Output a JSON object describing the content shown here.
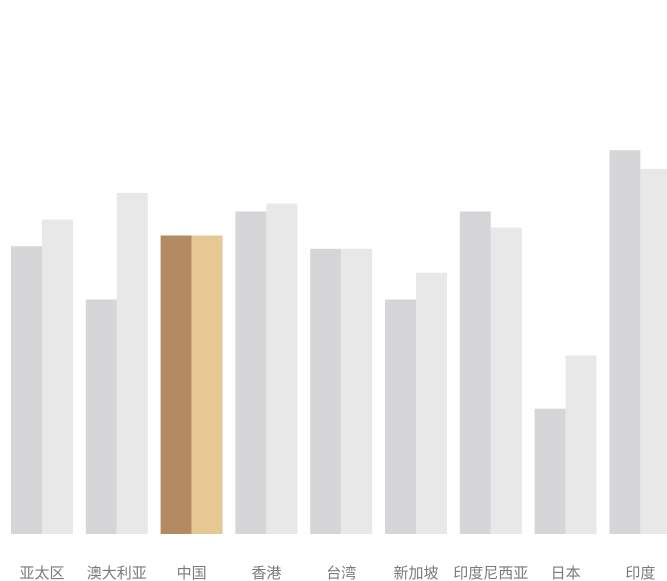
{
  "chart_data": {
    "type": "bar",
    "title": "",
    "xlabel": "",
    "ylabel": "",
    "ylim": [
      0,
      100
    ],
    "grid": false,
    "legend": "none",
    "categories": [
      "亚太区",
      "澳大利亚",
      "中国",
      "香港",
      "台湾",
      "新加坡",
      "印度尼西亚",
      "日本",
      "印度"
    ],
    "series": [
      {
        "values": [
          54.0,
          44.0,
          56.0,
          60.5,
          53.5,
          44.0,
          60.5,
          23.5,
          72.0
        ]
      },
      {
        "values": [
          59.0,
          64.0,
          56.0,
          62.0,
          53.5,
          49.0,
          57.5,
          33.5,
          68.5
        ]
      }
    ],
    "highlight_category": "中国",
    "colors": {
      "series_default": [
        "#d6d6d8",
        "#e8e8e8"
      ],
      "series_highlight": [
        "#b38a62",
        "#e6c895"
      ],
      "label": "#7a7a7a"
    }
  }
}
